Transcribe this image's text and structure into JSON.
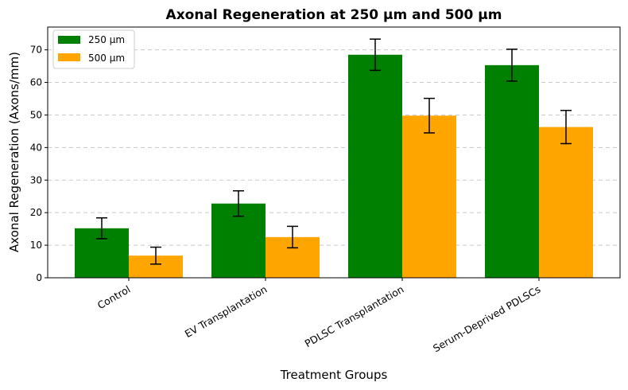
{
  "chart_data": {
    "type": "bar",
    "title": "Axonal Regeneration at 250 µm and 500 µm",
    "xlabel": "Treatment Groups",
    "ylabel": "Axonal Regeneration (Axons/mm)",
    "categories": [
      "Control",
      "EV Transplantation",
      "PDLSC Transplantation",
      "Serum-Deprived PDLSCs"
    ],
    "series": [
      {
        "name": "250 µm",
        "color": "#008000",
        "values": [
          15.2,
          22.8,
          68.5,
          65.3
        ],
        "errors": [
          3.2,
          3.9,
          4.8,
          4.9
        ]
      },
      {
        "name": "500 µm",
        "color": "#FFA500",
        "values": [
          6.8,
          12.5,
          49.8,
          46.3
        ],
        "errors": [
          2.6,
          3.3,
          5.3,
          5.1
        ]
      }
    ],
    "yticks": [
      0,
      10,
      20,
      30,
      40,
      50,
      60,
      70
    ],
    "ylim": [
      0,
      77
    ],
    "grid": "y-dashed",
    "legend": "top-left"
  }
}
